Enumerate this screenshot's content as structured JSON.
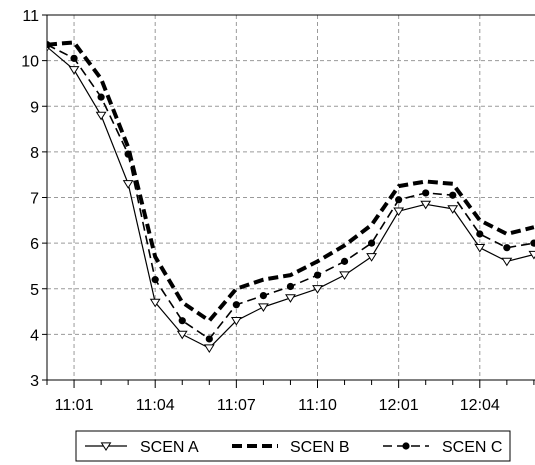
{
  "chart_data": {
    "type": "line",
    "title": "",
    "xlabel": "",
    "ylabel": "",
    "ylim": [
      3,
      11
    ],
    "yticks": [
      3,
      4,
      5,
      6,
      7,
      8,
      9,
      10,
      11
    ],
    "x": [
      "11:00",
      "11:01",
      "11:02",
      "11:03",
      "11:04",
      "11:05",
      "11:06",
      "11:07",
      "11:08",
      "11:09",
      "11:10",
      "11:11",
      "11:12",
      "12:01",
      "12:02",
      "12:03",
      "12:04",
      "12:05",
      "12:06"
    ],
    "x_tick_labels": [
      "11:01",
      "11:04",
      "11:07",
      "11:10",
      "12:01",
      "12:04"
    ],
    "grid": true,
    "legend_position": "bottom",
    "series": [
      {
        "name": "SCEN A",
        "style": "thin-solid",
        "marker": "triangle-down-open",
        "color": "#000000",
        "values": [
          10.3,
          9.8,
          8.8,
          7.3,
          4.7,
          4.0,
          3.7,
          4.3,
          4.6,
          4.8,
          5.0,
          5.3,
          5.7,
          6.7,
          6.85,
          6.75,
          5.9,
          5.6,
          5.75
        ]
      },
      {
        "name": "SCEN B",
        "style": "thick-dashed",
        "marker": "none",
        "color": "#000000",
        "values": [
          10.35,
          10.4,
          9.6,
          8.1,
          5.7,
          4.7,
          4.3,
          5.0,
          5.2,
          5.3,
          5.6,
          5.95,
          6.4,
          7.25,
          7.35,
          7.3,
          6.5,
          6.2,
          6.35
        ]
      },
      {
        "name": "SCEN C",
        "style": "long-dash",
        "marker": "filled-circle",
        "color": "#000000",
        "values": [
          10.35,
          10.05,
          9.2,
          7.95,
          5.2,
          4.3,
          3.9,
          4.65,
          4.85,
          5.05,
          5.3,
          5.6,
          6.0,
          6.95,
          7.1,
          7.05,
          6.2,
          5.9,
          6.0
        ]
      }
    ]
  }
}
